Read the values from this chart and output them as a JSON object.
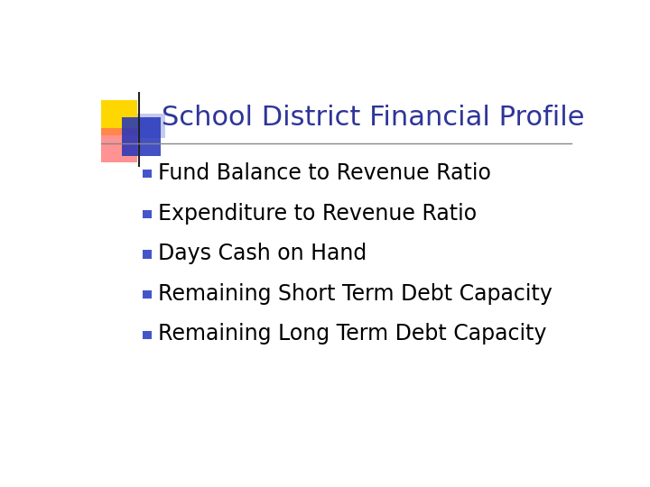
{
  "title": "School District Financial Profile",
  "title_color": "#2E3599",
  "title_fontsize": 22,
  "background_color": "#FFFFFF",
  "bullet_items": [
    "Fund Balance to Revenue Ratio",
    "Expenditure to Revenue Ratio",
    "Days Cash on Hand",
    "Remaining Short Term Debt Capacity",
    "Remaining Long Term Debt Capacity"
  ],
  "bullet_fontsize": 17,
  "bullet_color": "#000000",
  "bullet_square_color": "#4455CC",
  "line_color": "#888888",
  "icon_colors": {
    "yellow": "#FFD700",
    "red": "#FF6666",
    "blue_dark": "#2233BB",
    "blue_light": "#8899DD"
  }
}
